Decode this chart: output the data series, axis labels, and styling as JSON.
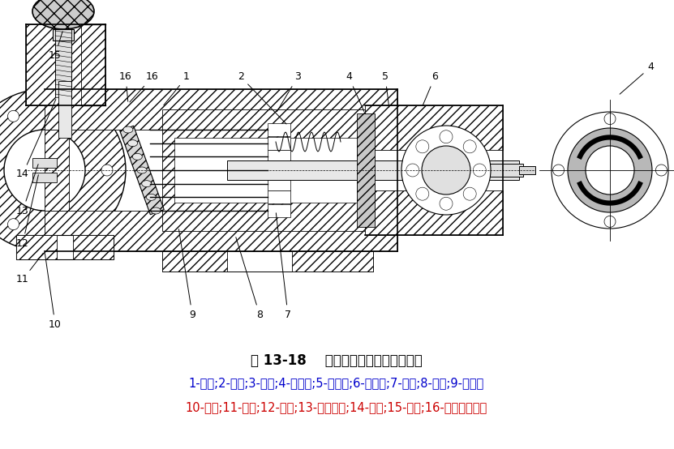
{
  "title": "图 13-18    斜盘式轴向柱塞泵的结构图",
  "caption_line1": "1-泵体;2-弹簧;3-缸体;4-配油盘;5-前泵体;6-传动轴;7-柱塞;8-轴承;9-滑履；",
  "caption_line2": "10-压盘;11-斜盘;12-轴销;13-变量活塞;14-丝杆;15-手轮;16-变量机构壳体",
  "bg_color": "#ffffff",
  "title_color": "#000000",
  "caption_color1": "#0000cc",
  "caption_color2": "#cc0000",
  "title_fontsize": 12,
  "caption_fontsize": 10.5,
  "fig_width": 8.31,
  "fig_height": 5.54,
  "dpi": 100
}
